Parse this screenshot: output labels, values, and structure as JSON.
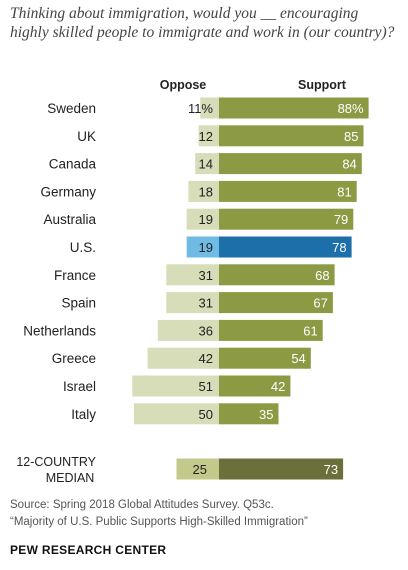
{
  "title": "Thinking about immigration, would you __ encouraging highly skilled people to immigrate and work in (our country)?",
  "source": "Source: Spring 2018 Global Attitudes Survey. Q53c.",
  "report": "“Majority of U.S. Public Supports High-Skilled Immigration”",
  "brand": "PEW RESEARCH CENTER",
  "colors": {
    "oppose": "#d7dcb9",
    "support": "#8c9a44",
    "oppose_highlight": "#6fbbe3",
    "support_highlight": "#1d6fa9",
    "median_oppose": "#c3c98a",
    "median_support": "#6b6f3a"
  },
  "chart_data": {
    "type": "bar",
    "layout": "diverging-horizontal",
    "series_headers": [
      "Oppose",
      "Support"
    ],
    "categories": [
      "Sweden",
      "UK",
      "Canada",
      "Germany",
      "Australia",
      "U.S.",
      "France",
      "Spain",
      "Netherlands",
      "Greece",
      "Israel",
      "Italy"
    ],
    "series": [
      {
        "name": "Oppose",
        "values": [
          11,
          12,
          14,
          18,
          19,
          19,
          31,
          31,
          36,
          42,
          51,
          50
        ],
        "labels": [
          "11%",
          "12",
          "14",
          "18",
          "19",
          "19",
          "31",
          "31",
          "36",
          "42",
          "51",
          "50"
        ]
      },
      {
        "name": "Support",
        "values": [
          88,
          85,
          84,
          81,
          79,
          78,
          68,
          67,
          61,
          54,
          42,
          35
        ],
        "labels": [
          "88%",
          "85",
          "84",
          "81",
          "79",
          "78",
          "68",
          "67",
          "61",
          "54",
          "42",
          "35"
        ]
      }
    ],
    "highlight": "U.S.",
    "median": {
      "label": [
        "12-COUNTRY",
        "MEDIAN"
      ],
      "oppose": 25,
      "support": 73,
      "oppose_label": "25",
      "support_label": "73"
    }
  }
}
